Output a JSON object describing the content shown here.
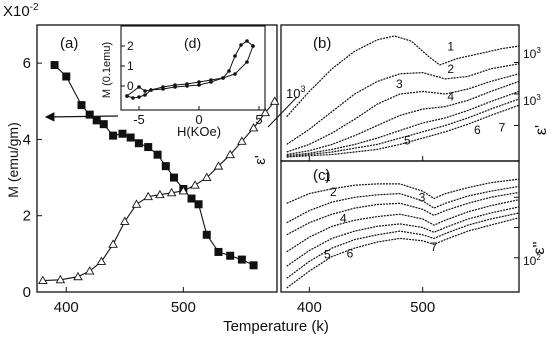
{
  "chart_data": [
    {
      "id": "a",
      "panel_label": "(a)",
      "type": "scatter",
      "xlabel": "Temperature (k)",
      "ylabel": "M (emu/gm)",
      "y_multiplier": "X10",
      "y_multiplier_exp": "-2",
      "xlim": [
        375,
        580
      ],
      "ylim": [
        0,
        7
      ],
      "xticks": [
        "400",
        "500"
      ],
      "yticks": [
        "0",
        "2",
        "4",
        "6"
      ],
      "annotation": "10",
      "annotation_exp": "3",
      "series": [
        {
          "marker": "filled-square",
          "x": [
            390,
            400,
            413,
            420,
            426,
            432,
            440,
            448,
            455,
            462,
            470,
            478,
            485,
            492,
            500,
            507,
            513,
            520,
            530,
            540,
            550,
            560
          ],
          "y": [
            5.95,
            5.65,
            4.9,
            4.65,
            4.5,
            4.4,
            4.1,
            4.15,
            4.05,
            3.9,
            3.8,
            3.6,
            3.3,
            3.0,
            2.7,
            2.45,
            2.3,
            1.5,
            1.05,
            0.95,
            0.85,
            0.7
          ]
        },
        {
          "marker": "open-triangle",
          "x": [
            380,
            395,
            410,
            420,
            430,
            440,
            450,
            460,
            470,
            480,
            490,
            500,
            510,
            520,
            530,
            540,
            550,
            560,
            570,
            578
          ],
          "y": [
            0.3,
            0.32,
            0.4,
            0.55,
            0.8,
            1.25,
            1.85,
            2.3,
            2.5,
            2.55,
            2.6,
            2.65,
            2.8,
            3.0,
            3.3,
            3.6,
            3.95,
            4.3,
            4.7,
            5.0
          ]
        }
      ]
    },
    {
      "id": "d",
      "panel_label": "(d)",
      "type": "line",
      "xlabel": "H(KOe)",
      "ylabel": "M (0.1emu)",
      "xlim": [
        -6.5,
        5.5
      ],
      "ylim": [
        -1.2,
        3.0
      ],
      "xticks": [
        "-5",
        "0",
        "5"
      ],
      "yticks": [
        "0",
        "1",
        "2"
      ],
      "series": [
        {
          "x": [
            -6,
            -5,
            -4.5,
            -4,
            -3,
            -2,
            -1,
            0,
            1,
            2,
            2.5,
            3,
            3.5,
            4,
            4.5
          ],
          "y": [
            -0.5,
            -0.05,
            -0.25,
            -0.2,
            -0.15,
            -0.05,
            0.0,
            0.05,
            0.2,
            0.4,
            0.75,
            1.5,
            2.05,
            2.25,
            2.0
          ]
        },
        {
          "x": [
            4.5,
            4,
            3,
            2,
            1,
            0,
            -1,
            -2,
            -3,
            -4,
            -4.5,
            -5,
            -5.5,
            -6
          ],
          "y": [
            2.0,
            1.2,
            0.6,
            0.4,
            0.3,
            0.2,
            0.1,
            0.05,
            -0.05,
            -0.2,
            -0.45,
            -0.55,
            -0.6,
            -0.5
          ]
        }
      ]
    },
    {
      "id": "b",
      "panel_label": "(b)",
      "type": "line",
      "ylabel": "ε'",
      "xlim": [
        375,
        585
      ],
      "yticks_right": [
        "10",
        "10"
      ],
      "ytick_exps": [
        "3",
        "3"
      ],
      "series": [
        {
          "name": "1",
          "x": [
            380,
            400,
            420,
            440,
            460,
            475,
            490,
            505,
            515,
            530,
            550,
            570,
            585
          ],
          "y": [
            0.32,
            0.52,
            0.7,
            0.84,
            0.93,
            0.96,
            0.92,
            0.8,
            0.73,
            0.78,
            0.82,
            0.86,
            0.88
          ]
        },
        {
          "name": "2",
          "x": [
            380,
            400,
            420,
            440,
            460,
            480,
            500,
            520,
            540,
            560,
            585
          ],
          "y": [
            0.1,
            0.22,
            0.36,
            0.5,
            0.6,
            0.66,
            0.67,
            0.62,
            0.64,
            0.7,
            0.74
          ]
        },
        {
          "name": "3",
          "x": [
            380,
            400,
            420,
            440,
            460,
            480,
            500,
            520,
            540,
            560,
            585
          ],
          "y": [
            0.04,
            0.1,
            0.19,
            0.3,
            0.42,
            0.5,
            0.52,
            0.5,
            0.54,
            0.6,
            0.66
          ]
        },
        {
          "name": "4",
          "x": [
            380,
            400,
            420,
            440,
            460,
            480,
            500,
            520,
            540,
            560,
            585
          ],
          "y": [
            0.02,
            0.05,
            0.1,
            0.17,
            0.25,
            0.33,
            0.38,
            0.4,
            0.45,
            0.52,
            0.6
          ]
        },
        {
          "name": "5",
          "x": [
            380,
            400,
            420,
            440,
            460,
            480,
            500,
            520,
            540,
            560,
            585
          ],
          "y": [
            0.01,
            0.03,
            0.06,
            0.1,
            0.15,
            0.21,
            0.27,
            0.31,
            0.37,
            0.44,
            0.52
          ]
        },
        {
          "name": "6",
          "x": [
            380,
            400,
            420,
            440,
            460,
            480,
            500,
            520,
            540,
            560,
            585
          ],
          "y": [
            0.0,
            0.02,
            0.04,
            0.07,
            0.1,
            0.15,
            0.2,
            0.25,
            0.31,
            0.38,
            0.46
          ]
        },
        {
          "name": "7",
          "x": [
            380,
            400,
            420,
            440,
            460,
            480,
            500,
            520,
            540,
            560,
            585
          ],
          "y": [
            0.0,
            0.01,
            0.02,
            0.04,
            0.06,
            0.1,
            0.15,
            0.2,
            0.26,
            0.33,
            0.41
          ]
        }
      ]
    },
    {
      "id": "c",
      "panel_label": "(c)",
      "type": "line",
      "xlabel": "Temperature (k)",
      "ylabel": "ε''",
      "xlim": [
        375,
        585
      ],
      "xticks": [
        "400",
        "500"
      ],
      "yticks_right": [
        "10"
      ],
      "ytick_exps": [
        "2"
      ],
      "series": [
        {
          "name": "1",
          "x": [
            380,
            400,
            420,
            440,
            460,
            480,
            500,
            510,
            520,
            540,
            560,
            585
          ],
          "y": [
            0.7,
            0.78,
            0.82,
            0.85,
            0.86,
            0.86,
            0.8,
            0.74,
            0.78,
            0.83,
            0.87,
            0.9
          ]
        },
        {
          "name": "2",
          "x": [
            380,
            400,
            420,
            440,
            460,
            480,
            500,
            510,
            520,
            540,
            560,
            585
          ],
          "y": [
            0.54,
            0.64,
            0.71,
            0.75,
            0.77,
            0.78,
            0.72,
            0.66,
            0.7,
            0.76,
            0.8,
            0.84
          ]
        },
        {
          "name": "3",
          "x": [
            380,
            400,
            420,
            440,
            460,
            480,
            500,
            510,
            520,
            540,
            560,
            585
          ],
          "y": [
            0.44,
            0.54,
            0.61,
            0.66,
            0.69,
            0.7,
            0.65,
            0.6,
            0.64,
            0.7,
            0.75,
            0.79
          ]
        },
        {
          "name": "4",
          "x": [
            380,
            400,
            420,
            440,
            460,
            480,
            500,
            510,
            520,
            540,
            560,
            585
          ],
          "y": [
            0.3,
            0.42,
            0.51,
            0.56,
            0.59,
            0.61,
            0.57,
            0.52,
            0.56,
            0.63,
            0.68,
            0.73
          ]
        },
        {
          "name": "5",
          "x": [
            380,
            400,
            420,
            440,
            460,
            480,
            500,
            510,
            520,
            540,
            560,
            585
          ],
          "y": [
            0.18,
            0.31,
            0.41,
            0.47,
            0.51,
            0.53,
            0.5,
            0.46,
            0.5,
            0.57,
            0.62,
            0.67
          ]
        },
        {
          "name": "6",
          "x": [
            380,
            400,
            420,
            440,
            460,
            480,
            500,
            510,
            520,
            540,
            560,
            585
          ],
          "y": [
            0.08,
            0.22,
            0.33,
            0.4,
            0.44,
            0.47,
            0.44,
            0.41,
            0.45,
            0.52,
            0.57,
            0.62
          ]
        },
        {
          "name": "7",
          "x": [
            380,
            400,
            420,
            440,
            460,
            480,
            500,
            510,
            520,
            540,
            560,
            585
          ],
          "y": [
            0.0,
            0.14,
            0.26,
            0.33,
            0.38,
            0.41,
            0.39,
            0.36,
            0.4,
            0.47,
            0.52,
            0.58
          ]
        }
      ]
    }
  ]
}
